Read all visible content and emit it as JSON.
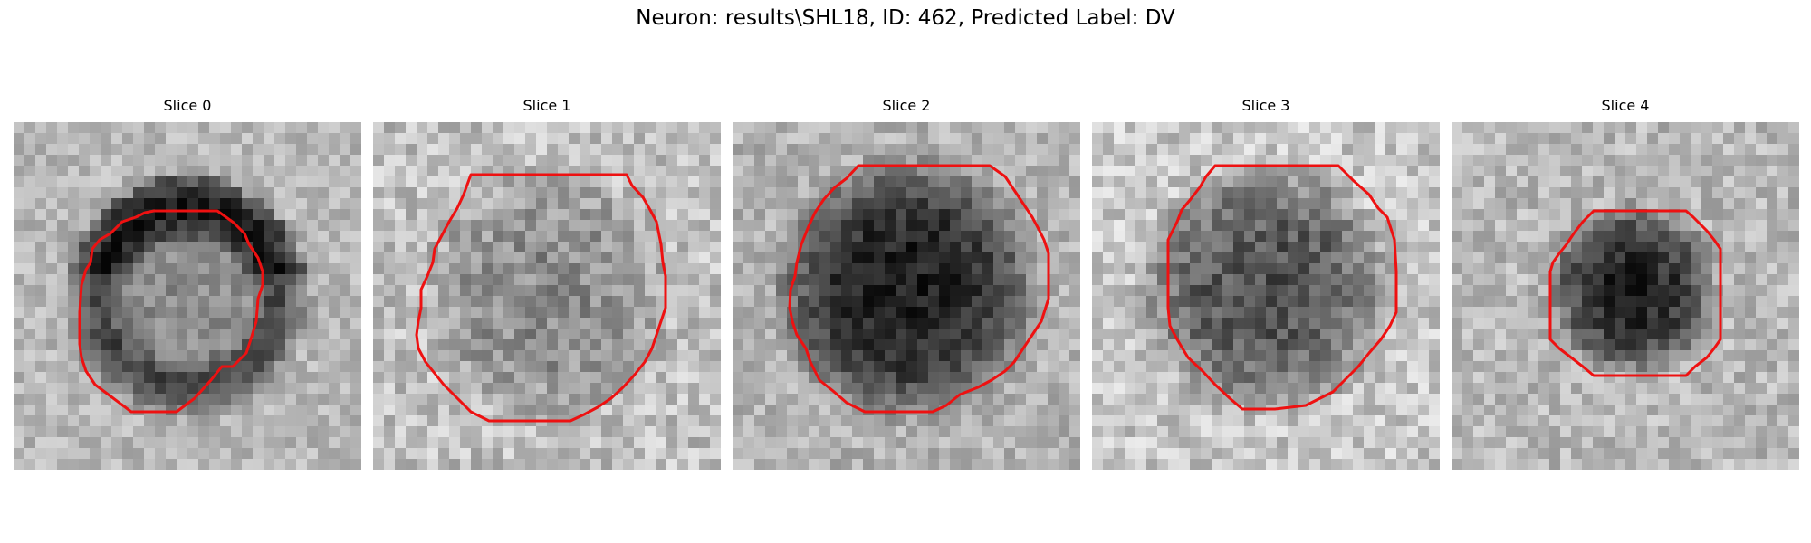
{
  "figure": {
    "title": "Neuron: results\\SHL18, ID: 462, Predicted Label: DV"
  },
  "colors": {
    "contour": "#ee1111",
    "background": "#ffffff",
    "text": "#000000"
  },
  "panels": [
    {
      "title": "Slice 0",
      "contour_color": "red"
    },
    {
      "title": "Slice 1",
      "contour_color": "red"
    },
    {
      "title": "Slice 2",
      "contour_color": "red"
    },
    {
      "title": "Slice 3",
      "contour_color": "red"
    },
    {
      "title": "Slice 4",
      "contour_color": "red"
    }
  ]
}
